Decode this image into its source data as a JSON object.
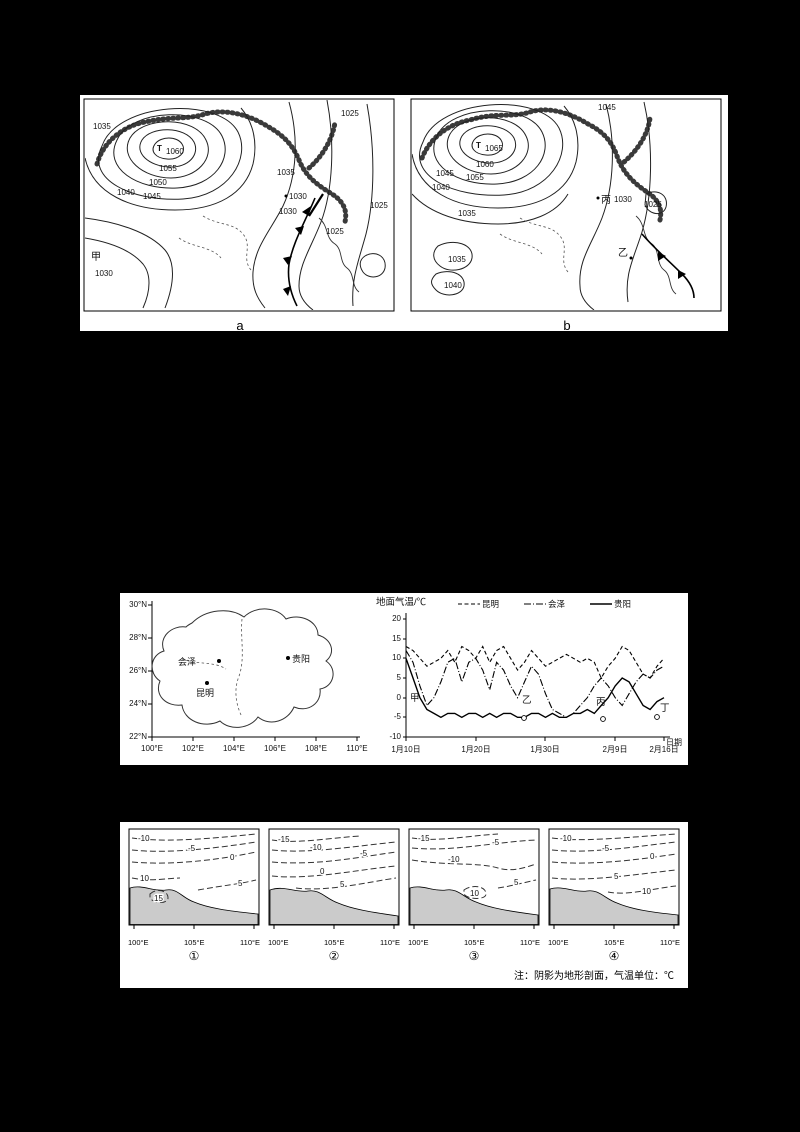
{
  "colors": {
    "page_bg": "#000000",
    "panel_bg": "#ffffff",
    "line": "#000000",
    "terrain_fill": "#cbcbcb"
  },
  "synoptic": {
    "map_a": {
      "letter": "a",
      "labels": [
        "1035",
        "T",
        "1060",
        "1055",
        "1050",
        "1040",
        "1045",
        "1025",
        "1035",
        "1030",
        "1030",
        "1025",
        "1025",
        "甲",
        "1030"
      ]
    },
    "map_b": {
      "letter": "b",
      "labels": [
        "1045",
        "T",
        "1065",
        "1060",
        "1055",
        "1045",
        "1040",
        "1035",
        "丙",
        "1030",
        "1025",
        "乙",
        "1035",
        "1040"
      ]
    }
  },
  "region_map": {
    "lat_ticks": [
      "30°N",
      "28°N",
      "26°N",
      "24°N",
      "22°N"
    ],
    "lon_ticks": [
      "100°E",
      "102°E",
      "104°E",
      "106°E",
      "108°E",
      "110°E"
    ],
    "cities": [
      "会泽",
      "贵阳",
      "昆明"
    ]
  },
  "temp_chart": {
    "title": "地面气温/℃",
    "xlabel": "日期",
    "legend": [
      "昆明",
      "会泽",
      "贵阳"
    ],
    "y_ticks": [
      "20",
      "15",
      "10",
      "5",
      "0",
      "-5",
      "-10"
    ],
    "x_ticks": [
      "1月10日",
      "1月20日",
      "1月30日",
      "2月9日",
      "2月16日"
    ],
    "annotations": [
      "甲",
      "乙",
      "丙",
      "丁"
    ]
  },
  "cross_sections": {
    "x_ticks": [
      "100°E",
      "105°E",
      "110°E"
    ],
    "note": "注：阴影为地形剖面，气温单位：℃",
    "panels": [
      {
        "num": "①",
        "labels": [
          "-10",
          "-5",
          "0",
          "10",
          "15",
          "5"
        ]
      },
      {
        "num": "②",
        "labels": [
          "-15",
          "-10",
          "-5",
          "0",
          "5"
        ]
      },
      {
        "num": "③",
        "labels": [
          "-15",
          "-5",
          "-10",
          "10",
          "5"
        ]
      },
      {
        "num": "④",
        "labels": [
          "-10",
          "-5",
          "0",
          "5",
          "10"
        ]
      }
    ]
  },
  "chart_data": [
    {
      "type": "line",
      "title": "地面气温/℃",
      "xlabel": "日期",
      "x_tick_labels": [
        "1月10日",
        "1月20日",
        "1月30日",
        "2月9日",
        "2月16日"
      ],
      "x_tick_days": [
        0,
        10,
        20,
        30,
        37
      ],
      "ylim": [
        -10,
        20
      ],
      "y_ticks": [
        20,
        15,
        10,
        5,
        0,
        -5,
        -10
      ],
      "annotations": [
        "甲",
        "乙",
        "丙",
        "丁"
      ],
      "legend_position": "top",
      "grid": false,
      "series": [
        {
          "name": "昆明",
          "style": "dashed",
          "values": [
            13,
            12,
            10,
            8,
            9,
            10,
            12,
            9,
            13,
            12,
            10,
            13,
            9,
            12,
            13,
            10,
            7,
            9,
            12,
            10,
            8,
            9,
            10,
            11,
            10,
            9,
            10,
            9,
            5,
            8,
            10,
            13,
            12,
            9,
            6,
            5,
            8,
            10
          ]
        },
        {
          "name": "会泽",
          "style": "dashdot",
          "values": [
            12,
            9,
            3,
            -2,
            0,
            4,
            9,
            10,
            4,
            9,
            10,
            7,
            2,
            9,
            7,
            3,
            0,
            4,
            8,
            6,
            1,
            -3,
            -4,
            -5,
            -4,
            -2,
            0,
            3,
            5,
            3,
            0,
            -2,
            1,
            4,
            6,
            5,
            7,
            8
          ]
        },
        {
          "name": "贵阳",
          "style": "solid",
          "values": [
            10,
            5,
            0,
            -3,
            -4,
            -5,
            -4,
            -4,
            -5,
            -4,
            -4,
            -5,
            -4,
            -5,
            -4,
            -4,
            -5,
            -5,
            -4,
            -4,
            -5,
            -4,
            -5,
            -5,
            -4,
            -4,
            -3,
            -4,
            -2,
            0,
            3,
            5,
            4,
            1,
            -2,
            -3,
            -1,
            0
          ]
        }
      ]
    },
    {
      "type": "heatmap",
      "subtype": "isobar-weather-maps",
      "maps": [
        {
          "id": "a",
          "high_center": "T 1060",
          "isobar_values": [
            1025,
            1030,
            1035,
            1040,
            1045,
            1050,
            1055,
            1060
          ],
          "marked_points": [
            "甲"
          ]
        },
        {
          "id": "b",
          "high_center": "T 1065",
          "isobar_values": [
            1025,
            1030,
            1035,
            1040,
            1045,
            1055,
            1060,
            1065
          ],
          "marked_points": [
            "丙",
            "乙"
          ]
        }
      ]
    },
    {
      "type": "heatmap",
      "subtype": "temperature-cross-section-options",
      "x_range": [
        "100°E",
        "110°E"
      ],
      "note": "注：阴影为地形剖面，气温单位：℃",
      "panels": [
        {
          "id": "①",
          "contour_labels": [
            -10,
            -5,
            0,
            10,
            15,
            5
          ]
        },
        {
          "id": "②",
          "contour_labels": [
            -15,
            -10,
            -5,
            0,
            5
          ]
        },
        {
          "id": "③",
          "contour_labels": [
            -15,
            -5,
            -10,
            10,
            5
          ]
        },
        {
          "id": "④",
          "contour_labels": [
            -10,
            -5,
            0,
            5,
            10
          ]
        }
      ]
    }
  ]
}
